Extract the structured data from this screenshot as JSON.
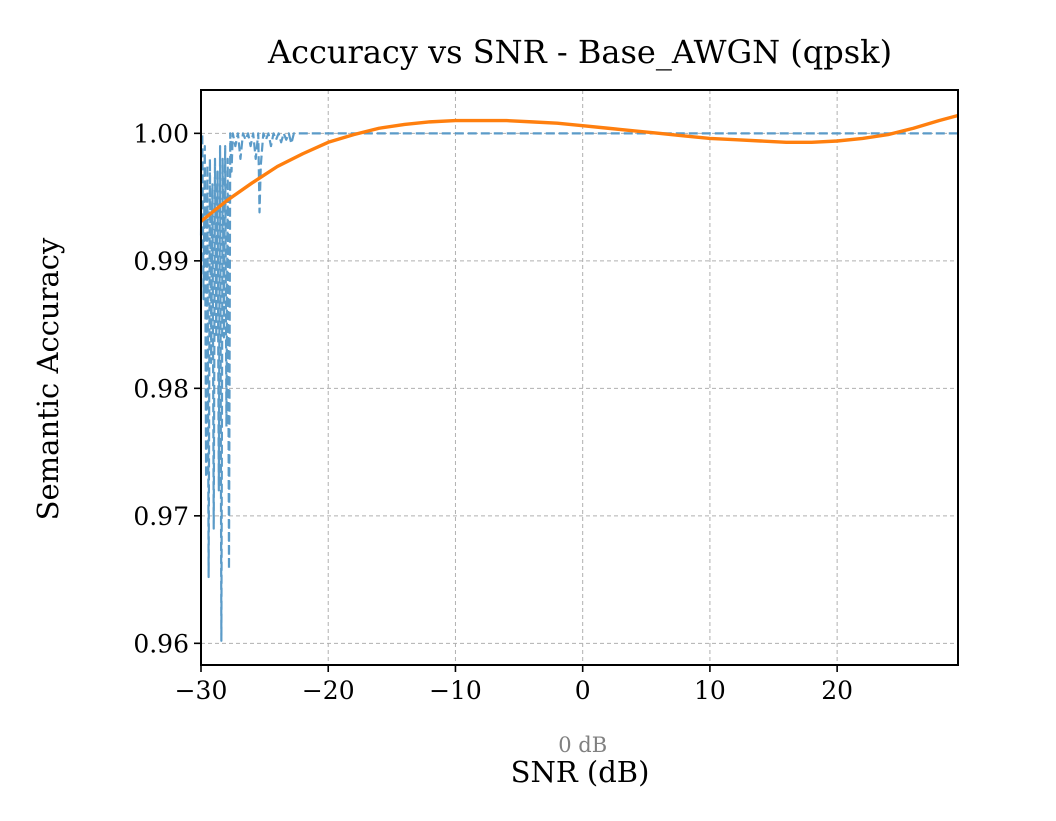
{
  "chart_data": {
    "type": "line",
    "title": "Accuracy vs SNR - Base_AWGN (qpsk)",
    "xlabel": "SNR (dB)",
    "ylabel": "Semantic Accuracy",
    "xlim": [
      -30,
      29.5
    ],
    "ylim": [
      0.9583,
      1.0034
    ],
    "xticks": [
      -30,
      -20,
      -10,
      0,
      10,
      20
    ],
    "xtick_labels": [
      "−30",
      "−20",
      "−10",
      "0",
      "10",
      "20"
    ],
    "yticks": [
      0.96,
      0.97,
      0.98,
      0.99,
      1.0
    ],
    "ytick_labels": [
      "0.96",
      "0.97",
      "0.98",
      "0.99",
      "1.00"
    ],
    "grid": true,
    "annotations": [
      {
        "text": "0 dB",
        "x": 0,
        "position": "below x-axis at 0"
      }
    ],
    "series": [
      {
        "style": "dashed",
        "color": "#5b9bc8",
        "x": [
          -30.0,
          -29.9,
          -29.8,
          -29.7,
          -29.6,
          -29.5,
          -29.4,
          -29.3,
          -29.2,
          -29.1,
          -29.0,
          -28.9,
          -28.8,
          -28.7,
          -28.6,
          -28.5,
          -28.4,
          -28.3,
          -28.2,
          -28.1,
          -28.0,
          -27.9,
          -27.8,
          -27.7,
          -27.6,
          -27.5,
          -27.3,
          -27.1,
          -26.9,
          -26.7,
          -26.5,
          -26.3,
          -26.1,
          -25.9,
          -25.7,
          -25.5,
          -25.4,
          -25.3,
          -25.1,
          -24.9,
          -24.7,
          -24.5,
          -24.3,
          -24.1,
          -23.9,
          -23.7,
          -23.5,
          -23.3,
          -23.1,
          -22.9,
          -22.7,
          29.5
        ],
        "values": [
          0.992,
          1.0,
          0.987,
          0.999,
          0.973,
          0.9975,
          0.9652,
          0.998,
          0.982,
          0.996,
          0.969,
          0.998,
          0.984,
          0.997,
          0.972,
          0.999,
          0.9602,
          0.998,
          0.984,
          0.999,
          0.977,
          0.998,
          0.9658,
          1.0,
          0.997,
          1.0,
          0.999,
          1.0,
          0.998,
          1.0,
          0.9995,
          1.0,
          0.999,
          1.0,
          0.998,
          1.0,
          0.9938,
          0.9975,
          1.0,
          0.9995,
          1.0,
          0.999,
          1.0,
          0.9995,
          1.0,
          0.9993,
          1.0,
          0.9995,
          1.0,
          0.9992,
          1.0,
          1.0
        ]
      },
      {
        "style": "solid",
        "color": "#ff7f0e",
        "x": [
          -30,
          -28,
          -26,
          -24,
          -22,
          -20,
          -18,
          -16,
          -14,
          -12,
          -10,
          -8,
          -6,
          -4,
          -2,
          0,
          2,
          4,
          6,
          8,
          10,
          12,
          14,
          16,
          18,
          20,
          22,
          24,
          26,
          28,
          29.5
        ],
        "values": [
          0.9931,
          0.9947,
          0.9961,
          0.9974,
          0.9984,
          0.9993,
          0.9999,
          1.0004,
          1.0007,
          1.0009,
          1.001,
          1.001,
          1.001,
          1.0009,
          1.0008,
          1.0006,
          1.0004,
          1.0002,
          1.0,
          0.9998,
          0.9996,
          0.9995,
          0.9994,
          0.9993,
          0.9993,
          0.9994,
          0.9996,
          0.9999,
          1.0004,
          1.001,
          1.0014
        ]
      }
    ]
  }
}
